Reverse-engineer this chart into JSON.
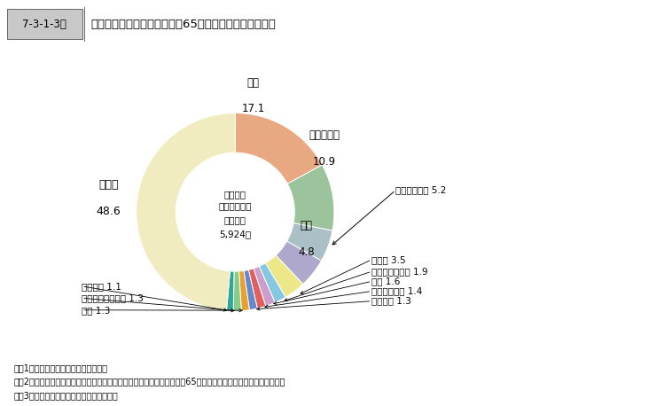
{
  "title_label": "7-3-1-3図",
  "title_text": "調査対象高齢犯罪者の罪名別65歳以上の犯歴件数構成比",
  "center_lines": [
    "調査対象",
    "高齢犯罪者の",
    "犯歴件数",
    "5,924件"
  ],
  "slices": [
    {
      "label": "窃盗",
      "value": 17.1,
      "color": "#E8A882"
    },
    {
      "label": "傷害・暴行",
      "value": 10.9,
      "color": "#9CC49C"
    },
    {
      "label": "廃棄物処理法",
      "value": 5.2,
      "color": "#ABBFC6"
    },
    {
      "label": "詐欺",
      "value": 4.8,
      "color": "#AEA8CC"
    },
    {
      "label": "銃刀法",
      "value": 3.5,
      "color": "#ECE88A"
    },
    {
      "label": "覚せい剤取締法",
      "value": 1.9,
      "color": "#86C8E2"
    },
    {
      "label": "殺人",
      "value": 1.6,
      "color": "#CC9ECC"
    },
    {
      "label": "賭博・富くじ",
      "value": 1.4,
      "color": "#E06060"
    },
    {
      "label": "器物損壊",
      "value": 1.3,
      "color": "#6688CC"
    },
    {
      "label": "横領",
      "value": 1.3,
      "color": "#E8A030"
    },
    {
      "label": "暴力行為等処罰法",
      "value": 1.3,
      "color": "#88CC88"
    },
    {
      "label": "住居侵入",
      "value": 1.1,
      "color": "#30A898"
    },
    {
      "label": "その他",
      "value": 48.6,
      "color": "#F0ECC0"
    }
  ],
  "notes": [
    "注　1　法務総合研究所の調査による。",
    "　　2　「調査対象高齢犯罪者の犯歴件数」とは，調査対象高齢犯罪者の65歳以上の犯歴を合算したものである。",
    "　　3　「横領」は，遺失物等横領を含む。"
  ],
  "donut_width": 0.4,
  "fig_width": 7.58,
  "fig_height": 4.58,
  "dpi": 100
}
